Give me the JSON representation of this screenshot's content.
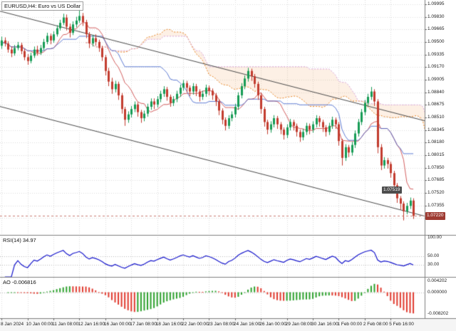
{
  "app": {
    "title": "EURUSD,H4: Euro vs US Dollar"
  },
  "colors": {
    "bull": "#169b55",
    "bear": "#c23b2e",
    "grid": "#dcdcdc",
    "rsi_line": "#1515cc",
    "ao_up": "#2ca02c",
    "ao_down": "#e03a2f",
    "cloud_a": "#e8821e",
    "cloud_b": "#d8a0d8",
    "cloud_fill": "rgba(244,164,96,0.16)",
    "channel": "#4a4a4a",
    "bid_line": "#c87c72",
    "bid_box": "#9e3b32",
    "annotation_bg": "#4d4d4d",
    "tenkan": "#cc4444",
    "kijun": "#4466cc",
    "axis_bg": "#f5f5f5",
    "separator": "#808080"
  },
  "chart_data": {
    "type": "candlestick",
    "title": "EURUSD,H4: Euro vs US Dollar",
    "symbol": "EURUSD",
    "timeframe": "H4",
    "price_axis": {
      "top": 1.1005,
      "bottom": 1.0697,
      "labels": [
        "1.09995",
        "1.09830",
        "1.09665",
        "1.09500",
        "1.09335",
        "1.09170",
        "1.09005",
        "1.08840",
        "1.08675",
        "1.08510",
        "1.08345",
        "1.08180",
        "1.08015",
        "1.07850",
        "1.07685",
        "1.07520",
        "1.07355",
        "1.07190"
      ]
    },
    "time_axis": {
      "bar_step": 8,
      "labels": [
        "8 Jan 2024",
        "10 Jan 00:00",
        "11 Jan 08:00",
        "12 Jan 16:00",
        "16 Jan 00:00",
        "17 Jan 08:00",
        "18 Jan 16:00",
        "22 Jan 00:00",
        "23 Jan 08:00",
        "24 Jan 16:00",
        "26 Jan 00:00",
        "29 Jan 08:00",
        "30 Jan 16:00",
        "1 Feb 00:00",
        "2 Feb 08:00",
        "5 Feb 16:00"
      ]
    },
    "candles": [
      [
        1.0945,
        1.0957,
        1.0941,
        1.0952
      ],
      [
        1.0952,
        1.0956,
        1.0944,
        1.0948
      ],
      [
        1.0948,
        1.0951,
        1.0936,
        1.094
      ],
      [
        1.094,
        1.0944,
        1.093,
        1.0935
      ],
      [
        1.0935,
        1.0946,
        1.0932,
        1.0942
      ],
      [
        1.0942,
        1.095,
        1.0939,
        1.0946
      ],
      [
        1.0946,
        1.0949,
        1.0934,
        1.0938
      ],
      [
        1.0938,
        1.0941,
        1.0926,
        1.093
      ],
      [
        1.093,
        1.0934,
        1.092,
        1.0925
      ],
      [
        1.0925,
        1.0936,
        1.0922,
        1.0932
      ],
      [
        1.0932,
        1.0944,
        1.0929,
        1.094
      ],
      [
        1.094,
        1.0945,
        1.0932,
        1.0936
      ],
      [
        1.0936,
        1.0946,
        1.0933,
        1.0942
      ],
      [
        1.0942,
        1.0954,
        1.0939,
        1.095
      ],
      [
        1.095,
        1.0962,
        1.0947,
        1.0958
      ],
      [
        1.0958,
        1.0961,
        1.0947,
        1.0952
      ],
      [
        1.0952,
        1.0964,
        1.0949,
        1.096
      ],
      [
        1.096,
        1.0972,
        1.0957,
        1.0968
      ],
      [
        1.0968,
        1.0979,
        1.0965,
        1.0975
      ],
      [
        1.0975,
        1.0987,
        1.0972,
        1.0982
      ],
      [
        1.0982,
        1.0986,
        1.0965,
        1.097
      ],
      [
        1.097,
        1.0974,
        1.0956,
        1.0962
      ],
      [
        1.0962,
        1.0977,
        1.0959,
        1.0973
      ],
      [
        1.0973,
        1.0983,
        1.0969,
        1.0978
      ],
      [
        1.0978,
        1.0995,
        1.0975,
        1.0984
      ],
      [
        1.0984,
        1.0988,
        1.0971,
        1.0976
      ],
      [
        1.0976,
        1.0979,
        1.0955,
        1.096
      ],
      [
        1.096,
        1.0963,
        1.0942,
        1.0948
      ],
      [
        1.0948,
        1.0959,
        1.0944,
        1.0955
      ],
      [
        1.0955,
        1.096,
        1.0945,
        1.095
      ],
      [
        1.095,
        1.0953,
        1.0937,
        1.0942
      ],
      [
        1.0942,
        1.0945,
        1.0925,
        1.093
      ],
      [
        1.093,
        1.0933,
        1.0906,
        1.0912
      ],
      [
        1.0912,
        1.0916,
        1.0892,
        1.0898
      ],
      [
        1.0898,
        1.0903,
        1.0882,
        1.0888
      ],
      [
        1.0888,
        1.0899,
        1.0884,
        1.0895
      ],
      [
        1.0895,
        1.0898,
        1.0874,
        1.088
      ],
      [
        1.088,
        1.0883,
        1.0856,
        1.0862
      ],
      [
        1.0862,
        1.0865,
        1.084,
        1.0848
      ],
      [
        1.0848,
        1.0859,
        1.0844,
        1.0855
      ],
      [
        1.0855,
        1.0866,
        1.0851,
        1.0862
      ],
      [
        1.0862,
        1.0872,
        1.0858,
        1.0868
      ],
      [
        1.0868,
        1.0871,
        1.0852,
        1.0858
      ],
      [
        1.0858,
        1.0861,
        1.0844,
        1.085
      ],
      [
        1.085,
        1.086,
        1.0846,
        1.0856
      ],
      [
        1.0856,
        1.0869,
        1.0852,
        1.0865
      ],
      [
        1.0865,
        1.0876,
        1.0861,
        1.0872
      ],
      [
        1.0872,
        1.0876,
        1.0862,
        1.0868
      ],
      [
        1.0868,
        1.0879,
        1.0864,
        1.0875
      ],
      [
        1.0875,
        1.0886,
        1.0871,
        1.0882
      ],
      [
        1.0882,
        1.0892,
        1.0878,
        1.0888
      ],
      [
        1.0888,
        1.0891,
        1.0873,
        1.0878
      ],
      [
        1.0878,
        1.0881,
        1.0865,
        1.087
      ],
      [
        1.087,
        1.0879,
        1.0866,
        1.0875
      ],
      [
        1.0875,
        1.0886,
        1.0871,
        1.0882
      ],
      [
        1.0882,
        1.0894,
        1.0878,
        1.089
      ],
      [
        1.089,
        1.09,
        1.0886,
        1.0896
      ],
      [
        1.0896,
        1.0899,
        1.0884,
        1.089
      ],
      [
        1.089,
        1.0893,
        1.0879,
        1.0885
      ],
      [
        1.0885,
        1.0896,
        1.0881,
        1.0892
      ],
      [
        1.0892,
        1.0895,
        1.0879,
        1.0885
      ],
      [
        1.0885,
        1.0888,
        1.0872,
        1.0878
      ],
      [
        1.0878,
        1.0886,
        1.0874,
        1.0882
      ],
      [
        1.0882,
        1.0894,
        1.0878,
        1.089
      ],
      [
        1.089,
        1.0893,
        1.088,
        1.0886
      ],
      [
        1.0886,
        1.0889,
        1.0874,
        1.088
      ],
      [
        1.088,
        1.0883,
        1.0866,
        1.0872
      ],
      [
        1.0872,
        1.0875,
        1.0854,
        1.086
      ],
      [
        1.086,
        1.0863,
        1.0842,
        1.0848
      ],
      [
        1.0848,
        1.0851,
        1.0834,
        1.084
      ],
      [
        1.084,
        1.0854,
        1.0836,
        1.085
      ],
      [
        1.085,
        1.0859,
        1.0846,
        1.0855
      ],
      [
        1.0855,
        1.0869,
        1.0851,
        1.0865
      ],
      [
        1.0865,
        1.0884,
        1.0861,
        1.088
      ],
      [
        1.088,
        1.0896,
        1.0876,
        1.0892
      ],
      [
        1.0892,
        1.0906,
        1.0888,
        1.0902
      ],
      [
        1.0902,
        1.0916,
        1.0898,
        1.0912
      ],
      [
        1.0912,
        1.0915,
        1.0899,
        1.0905
      ],
      [
        1.0905,
        1.0908,
        1.089,
        1.0895
      ],
      [
        1.0895,
        1.0898,
        1.0874,
        1.088
      ],
      [
        1.088,
        1.0883,
        1.0856,
        1.0862
      ],
      [
        1.0862,
        1.0865,
        1.0839,
        1.0845
      ],
      [
        1.0845,
        1.0848,
        1.0829,
        1.0835
      ],
      [
        1.0835,
        1.0846,
        1.0831,
        1.0842
      ],
      [
        1.0842,
        1.0854,
        1.0838,
        1.085
      ],
      [
        1.085,
        1.0853,
        1.0836,
        1.0842
      ],
      [
        1.0842,
        1.0845,
        1.0829,
        1.0835
      ],
      [
        1.0835,
        1.0838,
        1.0822,
        1.0828
      ],
      [
        1.0828,
        1.0842,
        1.0824,
        1.0838
      ],
      [
        1.0838,
        1.0849,
        1.0834,
        1.0845
      ],
      [
        1.0845,
        1.0848,
        1.0834,
        1.084
      ],
      [
        1.084,
        1.0843,
        1.0826,
        1.0832
      ],
      [
        1.0832,
        1.0835,
        1.0819,
        1.0825
      ],
      [
        1.0825,
        1.0836,
        1.0821,
        1.0832
      ],
      [
        1.0832,
        1.0844,
        1.0828,
        1.084
      ],
      [
        1.084,
        1.0843,
        1.0829,
        1.0835
      ],
      [
        1.0835,
        1.0846,
        1.0831,
        1.0842
      ],
      [
        1.0842,
        1.0854,
        1.0838,
        1.085
      ],
      [
        1.085,
        1.0853,
        1.0839,
        1.0845
      ],
      [
        1.0845,
        1.0848,
        1.0832,
        1.0838
      ],
      [
        1.0838,
        1.0841,
        1.0826,
        1.0832
      ],
      [
        1.0832,
        1.0844,
        1.0828,
        1.084
      ],
      [
        1.084,
        1.0852,
        1.0836,
        1.0848
      ],
      [
        1.0848,
        1.0851,
        1.0836,
        1.0842
      ],
      [
        1.0842,
        1.0845,
        1.0814,
        1.082
      ],
      [
        1.082,
        1.0823,
        1.0788,
        1.0798
      ],
      [
        1.0798,
        1.0816,
        1.0794,
        1.0812
      ],
      [
        1.0812,
        1.0815,
        1.0799,
        1.0805
      ],
      [
        1.0805,
        1.0819,
        1.0801,
        1.0815
      ],
      [
        1.0815,
        1.0834,
        1.0811,
        1.083
      ],
      [
        1.083,
        1.0849,
        1.0826,
        1.0845
      ],
      [
        1.0845,
        1.0862,
        1.0841,
        1.0858
      ],
      [
        1.0858,
        1.0874,
        1.0854,
        1.087
      ],
      [
        1.087,
        1.0882,
        1.0866,
        1.0878
      ],
      [
        1.0878,
        1.0891,
        1.0874,
        1.0885
      ],
      [
        1.0885,
        1.0888,
        1.0866,
        1.0872
      ],
      [
        1.0872,
        1.0875,
        1.0804,
        1.0812
      ],
      [
        1.0812,
        1.0816,
        1.0782,
        1.0788
      ],
      [
        1.0788,
        1.0799,
        1.0784,
        1.0795
      ],
      [
        1.0795,
        1.0798,
        1.0784,
        1.079
      ],
      [
        1.079,
        1.0793,
        1.0772,
        1.0778
      ],
      [
        1.0778,
        1.0781,
        1.0756,
        1.0762
      ],
      [
        1.0762,
        1.0765,
        1.0739,
        1.0745
      ],
      [
        1.0745,
        1.0748,
        1.073,
        1.0738
      ],
      [
        1.0738,
        1.0741,
        1.0716,
        1.0728
      ],
      [
        1.0728,
        1.0739,
        1.0724,
        1.0735
      ],
      [
        1.0735,
        1.0746,
        1.0731,
        1.0742
      ],
      [
        1.0742,
        1.0745,
        1.0718,
        1.0722
      ]
    ],
    "current_price": "1.07220",
    "annotations": [
      {
        "text": "1.07519",
        "bar": 116,
        "price": 1.0756
      }
    ],
    "channel": {
      "upper": {
        "b1": -2,
        "p1": 1.0992,
        "b2": 132,
        "p2": 1.0845
      },
      "lower": {
        "b1": -2,
        "p1": 1.0867,
        "b2": 132,
        "p2": 1.072
      }
    },
    "indicators": {
      "ichimoku": {
        "tenkan": 9,
        "kijun": 26,
        "senkou": 52,
        "shift": 26
      },
      "rsi": {
        "label": "RSI(14) 34.97",
        "period": 14,
        "range": [
          0,
          100
        ],
        "levels": [
          50,
          30
        ],
        "axis": [
          {
            "v": 100,
            "t": "100.00"
          },
          {
            "v": 50,
            "t": "50.00"
          },
          {
            "v": 30,
            "t": "30.00"
          }
        ]
      },
      "ao": {
        "label": "AO -0.006816",
        "range": [
          -0.0095,
          0.0055
        ],
        "axis": [
          {
            "v": 0.004202,
            "t": "0.004202"
          },
          {
            "v": 0,
            "t": "0.000000"
          },
          {
            "v": -0.008202,
            "t": "-0.008202"
          }
        ]
      }
    }
  }
}
